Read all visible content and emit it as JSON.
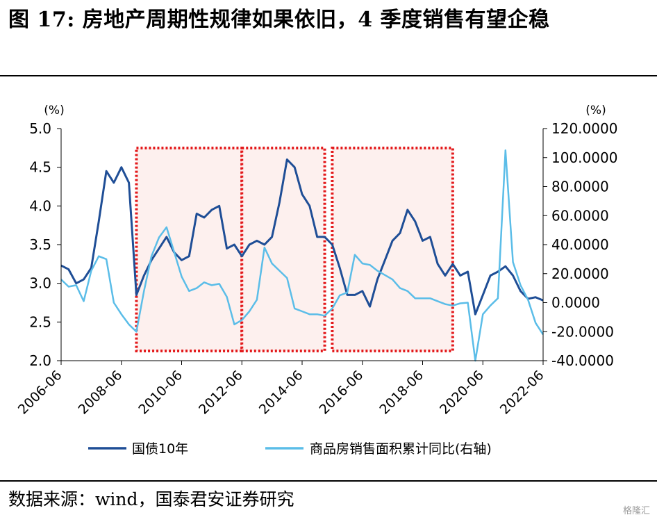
{
  "title": "图 17: 房地产周期性规律如果依旧，4 季度销售有望企稳",
  "source": "数据来源：wind，国泰君安证券研究",
  "watermark": "格隆汇",
  "chart_data": {
    "type": "line",
    "left_unit": "(%)",
    "right_unit": "(%)",
    "ylim_left": [
      2.0,
      5.0
    ],
    "ylim_right": [
      -40,
      120
    ],
    "left_ticks": [
      "2.0",
      "2.5",
      "3.0",
      "3.5",
      "4.0",
      "4.5",
      "5.0"
    ],
    "right_ticks": [
      "-40.0000",
      "-20.0000",
      "0.0000",
      "20.0000",
      "40.0000",
      "60.0000",
      "80.0000",
      "100.0000",
      "120.0000"
    ],
    "x_ticks": [
      "2006-06",
      "2008-06",
      "2010-06",
      "2012-06",
      "2014-06",
      "2016-06",
      "2018-06",
      "2020-06",
      "2022-06"
    ],
    "highlight_periods": [
      {
        "start": "2008-12",
        "end": "2012-06"
      },
      {
        "start": "2012-06",
        "end": "2015-03"
      },
      {
        "start": "2015-06",
        "end": "2019-06"
      }
    ],
    "series": [
      {
        "name": "国债10年",
        "axis": "left",
        "color": "#1f4e96",
        "points": [
          [
            "2006-06",
            3.23
          ],
          [
            "2006-09",
            3.18
          ],
          [
            "2006-12",
            3.0
          ],
          [
            "2007-03",
            3.05
          ],
          [
            "2007-06",
            3.2
          ],
          [
            "2007-09",
            3.8
          ],
          [
            "2007-12",
            4.45
          ],
          [
            "2008-03",
            4.3
          ],
          [
            "2008-06",
            4.5
          ],
          [
            "2008-09",
            4.3
          ],
          [
            "2008-12",
            2.85
          ],
          [
            "2009-03",
            3.1
          ],
          [
            "2009-06",
            3.3
          ],
          [
            "2009-09",
            3.45
          ],
          [
            "2009-12",
            3.6
          ],
          [
            "2010-03",
            3.4
          ],
          [
            "2010-06",
            3.3
          ],
          [
            "2010-09",
            3.35
          ],
          [
            "2010-12",
            3.9
          ],
          [
            "2011-03",
            3.85
          ],
          [
            "2011-06",
            3.95
          ],
          [
            "2011-09",
            4.0
          ],
          [
            "2011-12",
            3.45
          ],
          [
            "2012-03",
            3.5
          ],
          [
            "2012-06",
            3.35
          ],
          [
            "2012-09",
            3.5
          ],
          [
            "2012-12",
            3.55
          ],
          [
            "2013-03",
            3.5
          ],
          [
            "2013-06",
            3.6
          ],
          [
            "2013-09",
            4.05
          ],
          [
            "2013-12",
            4.6
          ],
          [
            "2014-03",
            4.5
          ],
          [
            "2014-06",
            4.15
          ],
          [
            "2014-09",
            4.0
          ],
          [
            "2014-12",
            3.6
          ],
          [
            "2015-03",
            3.6
          ],
          [
            "2015-06",
            3.5
          ],
          [
            "2015-09",
            3.2
          ],
          [
            "2015-12",
            2.85
          ],
          [
            "2016-03",
            2.85
          ],
          [
            "2016-06",
            2.9
          ],
          [
            "2016-09",
            2.7
          ],
          [
            "2016-12",
            3.05
          ],
          [
            "2017-03",
            3.3
          ],
          [
            "2017-06",
            3.55
          ],
          [
            "2017-09",
            3.65
          ],
          [
            "2017-12",
            3.95
          ],
          [
            "2018-03",
            3.8
          ],
          [
            "2018-06",
            3.55
          ],
          [
            "2018-09",
            3.6
          ],
          [
            "2018-12",
            3.25
          ],
          [
            "2019-03",
            3.1
          ],
          [
            "2019-06",
            3.25
          ],
          [
            "2019-09",
            3.1
          ],
          [
            "2019-12",
            3.15
          ],
          [
            "2020-03",
            2.6
          ],
          [
            "2020-06",
            2.85
          ],
          [
            "2020-09",
            3.1
          ],
          [
            "2020-12",
            3.15
          ],
          [
            "2021-03",
            3.22
          ],
          [
            "2021-06",
            3.1
          ],
          [
            "2021-09",
            2.9
          ],
          [
            "2021-12",
            2.8
          ],
          [
            "2022-03",
            2.82
          ],
          [
            "2022-06",
            2.78
          ]
        ]
      },
      {
        "name": "商品房销售面积累计同比(右轴)",
        "axis": "right",
        "color": "#5bbde8",
        "points": [
          [
            "2006-06",
            16
          ],
          [
            "2006-09",
            11
          ],
          [
            "2006-12",
            12
          ],
          [
            "2007-03",
            1
          ],
          [
            "2007-06",
            22
          ],
          [
            "2007-09",
            32
          ],
          [
            "2007-12",
            30
          ],
          [
            "2008-03",
            0
          ],
          [
            "2008-06",
            -8
          ],
          [
            "2008-09",
            -15
          ],
          [
            "2008-12",
            -20
          ],
          [
            "2009-03",
            8
          ],
          [
            "2009-06",
            32
          ],
          [
            "2009-09",
            45
          ],
          [
            "2009-12",
            52
          ],
          [
            "2010-03",
            35
          ],
          [
            "2010-06",
            18
          ],
          [
            "2010-09",
            8
          ],
          [
            "2010-12",
            10
          ],
          [
            "2011-03",
            14
          ],
          [
            "2011-06",
            12
          ],
          [
            "2011-09",
            13
          ],
          [
            "2011-12",
            4
          ],
          [
            "2012-03",
            -15
          ],
          [
            "2012-06",
            -12
          ],
          [
            "2012-09",
            -6
          ],
          [
            "2012-12",
            2
          ],
          [
            "2013-03",
            38
          ],
          [
            "2013-06",
            27
          ],
          [
            "2013-09",
            22
          ],
          [
            "2013-12",
            17
          ],
          [
            "2014-03",
            -4
          ],
          [
            "2014-06",
            -6
          ],
          [
            "2014-09",
            -8
          ],
          [
            "2014-12",
            -8
          ],
          [
            "2015-03",
            -9
          ],
          [
            "2015-06",
            -4
          ],
          [
            "2015-09",
            5
          ],
          [
            "2015-12",
            7
          ],
          [
            "2016-03",
            33
          ],
          [
            "2016-06",
            27
          ],
          [
            "2016-09",
            26
          ],
          [
            "2016-12",
            22
          ],
          [
            "2017-03",
            19
          ],
          [
            "2017-06",
            16
          ],
          [
            "2017-09",
            10
          ],
          [
            "2017-12",
            8
          ],
          [
            "2018-03",
            3
          ],
          [
            "2018-06",
            3
          ],
          [
            "2018-09",
            3
          ],
          [
            "2018-12",
            1
          ],
          [
            "2019-03",
            -1
          ],
          [
            "2019-06",
            -2
          ],
          [
            "2019-09",
            -0.5
          ],
          [
            "2019-12",
            0
          ],
          [
            "2020-03",
            -40
          ],
          [
            "2020-06",
            -8
          ],
          [
            "2020-09",
            -2
          ],
          [
            "2020-12",
            3
          ],
          [
            "2021-03",
            105
          ],
          [
            "2021-06",
            28
          ],
          [
            "2021-09",
            12
          ],
          [
            "2021-12",
            2
          ],
          [
            "2022-03",
            -14
          ],
          [
            "2022-06",
            -22
          ]
        ]
      }
    ]
  }
}
